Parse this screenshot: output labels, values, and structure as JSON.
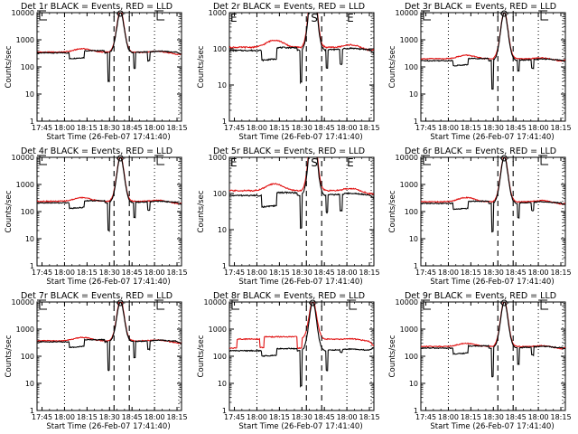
{
  "chart_data": [
    {
      "type": "line",
      "title": "Det 1r BLACK = Events, RED = LLD",
      "ylim": [
        1,
        10000
      ],
      "yscale": "log",
      "yticks": [
        "1",
        "10",
        "100",
        "1000",
        "10000"
      ],
      "xlabel": "Start Time (26-Feb-07 17:41:40)",
      "ylabel": "Counts/sec",
      "xticks": [
        "17:45",
        "18:00",
        "18:15",
        "18:30",
        "18:45",
        "18:00",
        "18:15"
      ],
      "markers": {
        "left": "bracket",
        "center": "O",
        "right": "bracket"
      },
      "series": [
        {
          "name": "Events",
          "color": "#000000",
          "base": 330,
          "dip": [
            [
              18.05,
              18.22,
              200
            ]
          ],
          "dip2": [
            [
              18.92,
              18.95,
              170
            ]
          ],
          "pre_spike": 30,
          "post_spike": 90,
          "peak": 10000,
          "end": 290
        },
        {
          "name": "LLD",
          "color": "#e01010",
          "base": 350,
          "bump": 470,
          "peak": 12000,
          "end": 300
        }
      ]
    },
    {
      "type": "line",
      "title": "Det 2r BLACK = Events, RED = LLD",
      "ylim": [
        1,
        1000
      ],
      "yscale": "log",
      "yticks": [
        "1",
        "10",
        "100",
        "1000"
      ],
      "xlabel": "Start Time (26-Feb-07 17:41:40)",
      "ylabel": "Counts/sec",
      "xticks": [
        "17:45",
        "18:00",
        "18:15",
        "18:30",
        "18:45",
        "18:00",
        "18:15"
      ],
      "markers": {
        "left": "E",
        "center": "S",
        "right": "E"
      },
      "series": [
        {
          "name": "Events",
          "color": "#000000",
          "base": 90,
          "dip": [
            [
              18.05,
              18.22,
              48
            ]
          ],
          "dip2": [
            [
              18.92,
              18.95,
              38
            ]
          ],
          "pre_spike": 12,
          "post_spike": 30,
          "peak": 10000,
          "end": 75
        },
        {
          "name": "LLD",
          "color": "#e01010",
          "base": 110,
          "bump": 175,
          "peak": 12000,
          "end": 95
        }
      ]
    },
    {
      "type": "line",
      "title": "Det 3r BLACK = Events, RED = LLD",
      "ylim": [
        1,
        10000
      ],
      "yscale": "log",
      "yticks": [
        "1",
        "10",
        "100",
        "1000",
        "10000"
      ],
      "xlabel": "Start Time (26-Feb-07 17:41:40)",
      "ylabel": "Counts/sec",
      "xticks": [
        "17:45",
        "18:00",
        "18:15",
        "18:30",
        "18:45",
        "18:00",
        "18:15"
      ],
      "markers": {
        "left": "bracket",
        "center": "O",
        "right": "bracket"
      },
      "series": [
        {
          "name": "Events",
          "color": "#000000",
          "base": 170,
          "dip": [
            [
              18.05,
              18.22,
              110
            ]
          ],
          "dip2": [
            [
              18.92,
              18.95,
              90
            ]
          ],
          "pre_spike": 15,
          "post_spike": 70,
          "peak": 10000,
          "end": 160
        },
        {
          "name": "LLD",
          "color": "#e01010",
          "base": 200,
          "bump": 270,
          "peak": 10500,
          "end": 180
        }
      ]
    },
    {
      "type": "line",
      "title": "Det 4r BLACK = Events, RED = LLD",
      "ylim": [
        1,
        10000
      ],
      "yscale": "log",
      "yticks": [
        "1",
        "10",
        "100",
        "1000",
        "10000"
      ],
      "xlabel": "Start Time (26-Feb-07 17:41:40)",
      "ylabel": "Counts/sec",
      "xticks": [
        "17:45",
        "18:00",
        "18:15",
        "18:30",
        "18:45",
        "18:00",
        "18:15"
      ],
      "markers": {
        "left": "bracket",
        "center": "O",
        "right": "bracket"
      },
      "series": [
        {
          "name": "Events",
          "color": "#000000",
          "base": 210,
          "dip": [
            [
              18.05,
              18.22,
              130
            ]
          ],
          "dip2": [
            [
              18.92,
              18.95,
              110
            ]
          ],
          "pre_spike": 20,
          "post_spike": 60,
          "peak": 10000,
          "end": 180
        },
        {
          "name": "LLD",
          "color": "#e01010",
          "base": 240,
          "bump": 330,
          "peak": 11000,
          "end": 210
        }
      ]
    },
    {
      "type": "line",
      "title": "Det 5r BLACK = Events, RED = LLD",
      "ylim": [
        1,
        1000
      ],
      "yscale": "log",
      "yticks": [
        "1",
        "10",
        "100",
        "1000"
      ],
      "xlabel": "Start Time (26-Feb-07 17:41:40)",
      "ylabel": "Counts/sec",
      "xticks": [
        "17:45",
        "18:00",
        "18:15",
        "18:30",
        "18:45",
        "18:00",
        "18:15"
      ],
      "markers": {
        "left": "E",
        "center": "S",
        "right": "E"
      },
      "series": [
        {
          "name": "Events",
          "color": "#000000",
          "base": 88,
          "dip": [
            [
              18.05,
              18.22,
              42
            ]
          ],
          "dip2": [
            [
              18.92,
              18.95,
              33
            ]
          ],
          "pre_spike": 11,
          "post_spike": 30,
          "peak": 10000,
          "end": 75
        },
        {
          "name": "LLD",
          "color": "#e01010",
          "base": 120,
          "bump": 185,
          "peak": 12000,
          "end": 100
        }
      ]
    },
    {
      "type": "line",
      "title": "Det 6r BLACK = Events, RED = LLD",
      "ylim": [
        1,
        10000
      ],
      "yscale": "log",
      "yticks": [
        "1",
        "10",
        "100",
        "1000",
        "10000"
      ],
      "xlabel": "Start Time (26-Feb-07 17:41:40)",
      "ylabel": "Counts/sec",
      "xticks": [
        "17:45",
        "18:00",
        "18:15",
        "18:30",
        "18:45",
        "18:00",
        "18:15"
      ],
      "markers": {
        "left": "bracket",
        "center": "O",
        "right": "bracket"
      },
      "series": [
        {
          "name": "Events",
          "color": "#000000",
          "base": 200,
          "dip": [
            [
              18.05,
              18.22,
              120
            ]
          ],
          "dip2": [
            [
              18.92,
              18.95,
              110
            ]
          ],
          "pre_spike": 18,
          "post_spike": 60,
          "peak": 10000,
          "end": 180
        },
        {
          "name": "LLD",
          "color": "#e01010",
          "base": 230,
          "bump": 330,
          "peak": 11000,
          "end": 200
        }
      ]
    },
    {
      "type": "line",
      "title": "Det 7r BLACK = Events, RED = LLD",
      "ylim": [
        1,
        10000
      ],
      "yscale": "log",
      "yticks": [
        "1",
        "10",
        "100",
        "1000",
        "10000"
      ],
      "xlabel": "Start Time (26-Feb-07 17:41:40)",
      "ylabel": "Counts/sec",
      "xticks": [
        "17:45",
        "18:00",
        "18:15",
        "18:30",
        "18:45",
        "18:00",
        "18:15"
      ],
      "markers": {
        "left": "bracket",
        "center": "O",
        "right": "bracket"
      },
      "series": [
        {
          "name": "Events",
          "color": "#000000",
          "base": 340,
          "dip": [
            [
              18.05,
              18.22,
              210
            ]
          ],
          "dip2": [
            [
              18.92,
              18.95,
              180
            ]
          ],
          "pre_spike": 30,
          "post_spike": 90,
          "peak": 10000,
          "end": 290
        },
        {
          "name": "LLD",
          "color": "#e01010",
          "base": 370,
          "bump": 500,
          "peak": 12000,
          "end": 310
        }
      ]
    },
    {
      "type": "line",
      "title": "Det 8r BLACK = Events, RED = LLD",
      "ylim": [
        1,
        10000
      ],
      "yscale": "log",
      "yticks": [
        "1",
        "10",
        "100",
        "1000",
        "10000"
      ],
      "xlabel": "Start Time (26-Feb-07 17:41:40)",
      "ylabel": "Counts/sec",
      "xticks": [
        "17:45",
        "18:00",
        "18:15",
        "18:30",
        "18:45",
        "18:00",
        "18:15"
      ],
      "markers": {
        "left": "bracket",
        "center": "O",
        "right": "bracket"
      },
      "variant": "det8",
      "series": [
        {
          "name": "Events",
          "color": "#000000",
          "base": 160,
          "dip": [
            [
              18.05,
              18.22,
              100
            ]
          ],
          "dip2": [
            [
              18.92,
              18.95,
              140
            ]
          ],
          "pre_spike": 8,
          "post_spike": 30,
          "peak": 10000,
          "end": 210
        },
        {
          "name": "LLD",
          "color": "#e01010",
          "base": 430,
          "bump": 520,
          "peak": 11000,
          "end": 240
        }
      ]
    },
    {
      "type": "line",
      "title": "Det 9r BLACK = Events, RED = LLD",
      "ylim": [
        1,
        10000
      ],
      "yscale": "log",
      "yticks": [
        "1",
        "10",
        "100",
        "1000",
        "10000"
      ],
      "xlabel": "Start Time (26-Feb-07 17:41:40)",
      "ylabel": "Counts/sec",
      "xticks": [
        "17:45",
        "18:00",
        "18:15",
        "18:30",
        "18:45",
        "18:00",
        "18:15"
      ],
      "markers": {
        "left": "bracket",
        "center": "O",
        "right": "bracket"
      },
      "series": [
        {
          "name": "Events",
          "color": "#000000",
          "base": 200,
          "dip": [
            [
              18.05,
              18.22,
              120
            ]
          ],
          "dip2": [
            [
              18.92,
              18.95,
              110
            ]
          ],
          "pre_spike": 18,
          "post_spike": 50,
          "peak": 10000,
          "end": 190
        },
        {
          "name": "LLD",
          "color": "#e01010",
          "base": 230,
          "bump": 300,
          "peak": 11000,
          "end": 210
        }
      ]
    }
  ]
}
